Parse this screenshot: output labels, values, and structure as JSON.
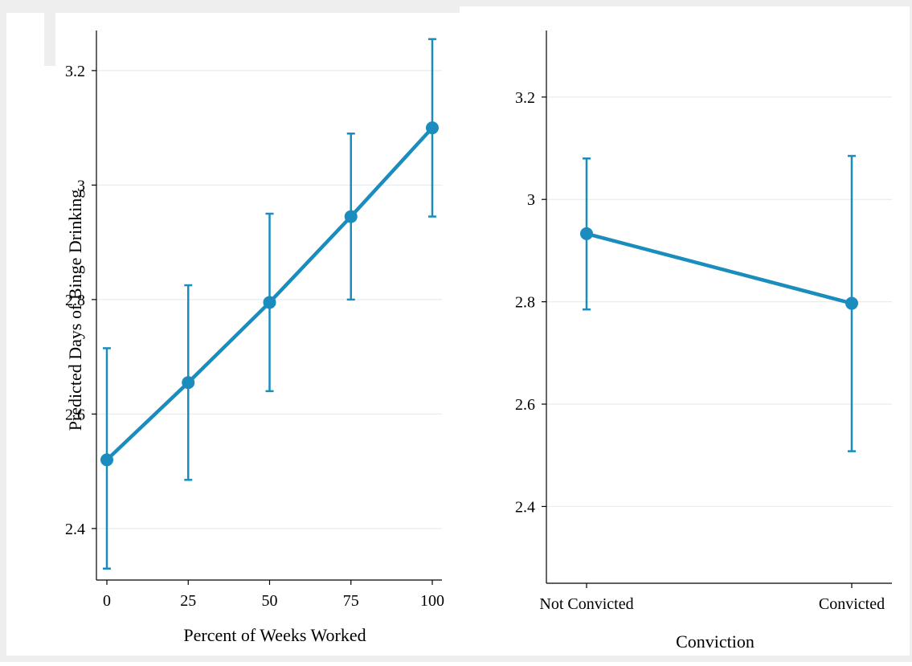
{
  "colors": {
    "series": "#1a8cbd",
    "grid": "#e6ecef",
    "frame": "#eeeeee",
    "axis": "#000000"
  },
  "chart_data": [
    {
      "type": "line",
      "with_error_bars": true,
      "title": "",
      "ylabel": "Predicted Days of Binge Drinking",
      "xlabel": "Percent of Weeks Worked",
      "x": [
        0,
        25,
        50,
        75,
        100
      ],
      "x_tick_labels": [
        "0",
        "25",
        "50",
        "75",
        "100"
      ],
      "y": [
        2.52,
        2.655,
        2.795,
        2.945,
        3.1
      ],
      "ci_low": [
        2.33,
        2.485,
        2.64,
        2.8,
        2.945
      ],
      "ci_high": [
        2.715,
        2.825,
        2.95,
        3.09,
        3.255
      ],
      "xlim": [
        -3,
        103
      ],
      "ylim": [
        2.31,
        3.27
      ],
      "y_ticks": [
        2.4,
        2.6,
        2.8,
        3.0,
        3.2
      ],
      "y_tick_labels": [
        "2.4",
        "2.6",
        "2.8",
        "3",
        "3.2"
      ],
      "grid": true
    },
    {
      "type": "line",
      "with_error_bars": true,
      "title": "",
      "ylabel": "",
      "xlabel": "Conviction",
      "categories": [
        "Not Convicted",
        "Convicted"
      ],
      "y": [
        2.933,
        2.797
      ],
      "ci_low": [
        2.785,
        2.508
      ],
      "ci_high": [
        3.08,
        3.085
      ],
      "ylim": [
        2.25,
        3.33
      ],
      "y_ticks": [
        2.4,
        2.6,
        2.8,
        3.0,
        3.2
      ],
      "y_tick_labels": [
        "2.4",
        "2.6",
        "2.8",
        "3",
        "3.2"
      ],
      "grid": true
    }
  ]
}
